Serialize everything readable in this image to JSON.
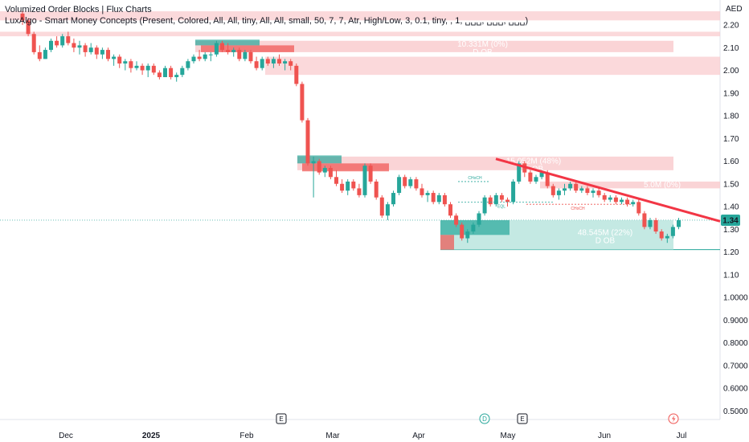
{
  "indicators": {
    "line1": "Volumized Order Blocks | Flux Charts",
    "line2": "LuxAlgo - Smart Money Concepts (Present, Colored, All, All, tiny, All, All, small, 50, 7, 7, Atr, High/Low, 3, 0.1, tiny, , 1, ␣␣␣, ␣␣␣, ␣␣␣)"
  },
  "colors": {
    "up": "#26a69a",
    "down": "#ef5350",
    "bear_zone": "#f9c9cc",
    "bull_zone": "#b5e3dc",
    "trendline": "#f23645",
    "price_label_bg": "#26a69a"
  },
  "chart_data": {
    "type": "candlestick",
    "currency": "AED",
    "y_ticks": [
      "2.20",
      "2.10",
      "2.00",
      "1.90",
      "1.80",
      "1.70",
      "1.60",
      "1.50",
      "1.40",
      "1.30",
      "1.20",
      "1.10",
      "1.0000",
      "0.9000",
      "0.8000",
      "0.7000",
      "0.6000",
      "0.5000"
    ],
    "x_ticks": [
      "Dec",
      "2025",
      "Feb",
      "Mar",
      "Apr",
      "May",
      "Jun",
      "Jul"
    ],
    "last_price": "1.34",
    "candles": [
      [
        2.25,
        2.26,
        2.2,
        2.22
      ],
      [
        2.22,
        2.23,
        2.15,
        2.16
      ],
      [
        2.16,
        2.17,
        2.07,
        2.08
      ],
      [
        2.08,
        2.11,
        2.04,
        2.05
      ],
      [
        2.05,
        2.1,
        2.05,
        2.09
      ],
      [
        2.09,
        2.14,
        2.08,
        2.13
      ],
      [
        2.13,
        2.15,
        2.1,
        2.11
      ],
      [
        2.11,
        2.16,
        2.1,
        2.15
      ],
      [
        2.15,
        2.17,
        2.11,
        2.12
      ],
      [
        2.12,
        2.14,
        2.08,
        2.1
      ],
      [
        2.1,
        2.13,
        2.07,
        2.11
      ],
      [
        2.11,
        2.12,
        2.06,
        2.08
      ],
      [
        2.08,
        2.12,
        2.07,
        2.1
      ],
      [
        2.1,
        2.11,
        2.05,
        2.07
      ],
      [
        2.07,
        2.1,
        2.05,
        2.09
      ],
      [
        2.09,
        2.1,
        2.04,
        2.05
      ],
      [
        2.05,
        2.07,
        2.02,
        2.06
      ],
      [
        2.06,
        2.07,
        2.01,
        2.03
      ],
      [
        2.03,
        2.05,
        2.0,
        2.04
      ],
      [
        2.04,
        2.05,
        1.99,
        2.01
      ],
      [
        2.01,
        2.04,
        2.0,
        2.02
      ],
      [
        2.02,
        2.03,
        1.98,
        2.0
      ],
      [
        2.0,
        2.03,
        1.97,
        2.02
      ],
      [
        2.02,
        2.03,
        1.98,
        1.99
      ],
      [
        1.99,
        2.0,
        1.96,
        1.97
      ],
      [
        1.97,
        2.02,
        1.97,
        2.01
      ],
      [
        2.01,
        2.02,
        1.96,
        1.97
      ],
      [
        1.97,
        1.99,
        1.95,
        1.98
      ],
      [
        1.98,
        2.02,
        1.97,
        2.01
      ],
      [
        2.01,
        2.05,
        2.0,
        2.04
      ],
      [
        2.04,
        2.07,
        2.03,
        2.06
      ],
      [
        2.06,
        2.09,
        2.04,
        2.05
      ],
      [
        2.05,
        2.08,
        2.04,
        2.07
      ],
      [
        2.07,
        2.08,
        2.04,
        2.07
      ],
      [
        2.07,
        2.13,
        2.06,
        2.12
      ],
      [
        2.12,
        2.13,
        2.08,
        2.09
      ],
      [
        2.09,
        2.12,
        2.07,
        2.08
      ],
      [
        2.08,
        2.1,
        2.06,
        2.09
      ],
      [
        2.09,
        2.1,
        2.04,
        2.05
      ],
      [
        2.05,
        2.09,
        2.04,
        2.08
      ],
      [
        2.08,
        2.09,
        2.03,
        2.04
      ],
      [
        2.04,
        2.06,
        2.0,
        2.01
      ],
      [
        2.01,
        2.06,
        2.0,
        2.05
      ],
      [
        2.05,
        2.06,
        2.02,
        2.03
      ],
      [
        2.03,
        2.06,
        2.01,
        2.05
      ],
      [
        2.05,
        2.07,
        2.02,
        2.03
      ],
      [
        2.03,
        2.05,
        2.0,
        2.04
      ],
      [
        2.04,
        2.05,
        2.0,
        2.02
      ],
      [
        2.02,
        2.03,
        1.93,
        1.94
      ],
      [
        1.94,
        1.95,
        1.77,
        1.78
      ],
      [
        1.78,
        1.79,
        1.58,
        1.59
      ],
      [
        1.59,
        1.62,
        1.44,
        1.6
      ],
      [
        1.6,
        1.61,
        1.54,
        1.55
      ],
      [
        1.55,
        1.58,
        1.53,
        1.57
      ],
      [
        1.57,
        1.58,
        1.52,
        1.53
      ],
      [
        1.53,
        1.56,
        1.49,
        1.5
      ],
      [
        1.5,
        1.52,
        1.46,
        1.47
      ],
      [
        1.47,
        1.52,
        1.45,
        1.51
      ],
      [
        1.51,
        1.52,
        1.47,
        1.48
      ],
      [
        1.48,
        1.5,
        1.44,
        1.45
      ],
      [
        1.45,
        1.59,
        1.44,
        1.58
      ],
      [
        1.58,
        1.59,
        1.5,
        1.51
      ],
      [
        1.51,
        1.52,
        1.43,
        1.44
      ],
      [
        1.44,
        1.45,
        1.35,
        1.36
      ],
      [
        1.36,
        1.42,
        1.34,
        1.41
      ],
      [
        1.41,
        1.47,
        1.4,
        1.46
      ],
      [
        1.46,
        1.54,
        1.45,
        1.53
      ],
      [
        1.53,
        1.54,
        1.48,
        1.49
      ],
      [
        1.49,
        1.53,
        1.48,
        1.52
      ],
      [
        1.52,
        1.53,
        1.47,
        1.48
      ],
      [
        1.48,
        1.5,
        1.44,
        1.45
      ],
      [
        1.45,
        1.47,
        1.42,
        1.46
      ],
      [
        1.46,
        1.47,
        1.41,
        1.42
      ],
      [
        1.42,
        1.46,
        1.41,
        1.45
      ],
      [
        1.45,
        1.46,
        1.4,
        1.41
      ],
      [
        1.41,
        1.42,
        1.35,
        1.36
      ],
      [
        1.36,
        1.37,
        1.31,
        1.32
      ],
      [
        1.32,
        1.33,
        1.25,
        1.26
      ],
      [
        1.26,
        1.3,
        1.24,
        1.29
      ],
      [
        1.29,
        1.33,
        1.28,
        1.32
      ],
      [
        1.32,
        1.38,
        1.31,
        1.37
      ],
      [
        1.37,
        1.45,
        1.36,
        1.44
      ],
      [
        1.44,
        1.45,
        1.4,
        1.41
      ],
      [
        1.41,
        1.46,
        1.4,
        1.45
      ],
      [
        1.45,
        1.46,
        1.42,
        1.43
      ],
      [
        1.43,
        1.44,
        1.4,
        1.42
      ],
      [
        1.42,
        1.52,
        1.41,
        1.51
      ],
      [
        1.51,
        1.6,
        1.5,
        1.59
      ],
      [
        1.59,
        1.6,
        1.53,
        1.55
      ],
      [
        1.55,
        1.56,
        1.5,
        1.51
      ],
      [
        1.51,
        1.54,
        1.5,
        1.53
      ],
      [
        1.53,
        1.56,
        1.52,
        1.55
      ],
      [
        1.55,
        1.56,
        1.48,
        1.49
      ],
      [
        1.49,
        1.5,
        1.44,
        1.45
      ],
      [
        1.45,
        1.48,
        1.43,
        1.47
      ],
      [
        1.47,
        1.5,
        1.45,
        1.48
      ],
      [
        1.48,
        1.51,
        1.47,
        1.5
      ],
      [
        1.5,
        1.51,
        1.46,
        1.47
      ],
      [
        1.47,
        1.49,
        1.46,
        1.48
      ],
      [
        1.48,
        1.49,
        1.45,
        1.46
      ],
      [
        1.46,
        1.48,
        1.44,
        1.47
      ],
      [
        1.47,
        1.48,
        1.44,
        1.45
      ],
      [
        1.45,
        1.46,
        1.42,
        1.43
      ],
      [
        1.43,
        1.45,
        1.42,
        1.44
      ],
      [
        1.44,
        1.45,
        1.41,
        1.42
      ],
      [
        1.42,
        1.44,
        1.41,
        1.43
      ],
      [
        1.43,
        1.44,
        1.4,
        1.41
      ],
      [
        1.41,
        1.43,
        1.4,
        1.42
      ],
      [
        1.42,
        1.43,
        1.36,
        1.37
      ],
      [
        1.37,
        1.38,
        1.3,
        1.31
      ],
      [
        1.31,
        1.35,
        1.3,
        1.34
      ],
      [
        1.34,
        1.35,
        1.28,
        1.29
      ],
      [
        1.29,
        1.3,
        1.25,
        1.26
      ],
      [
        1.26,
        1.28,
        1.24,
        1.27
      ],
      [
        1.27,
        1.32,
        1.26,
        1.31
      ],
      [
        1.31,
        1.35,
        1.3,
        1.34
      ]
    ],
    "order_blocks": [
      {
        "label": "10.331M (0%)",
        "sub": "D OB",
        "kind": "bear",
        "top": 2.13,
        "bottom": 2.08
      },
      {
        "label": "15.052M (48%)",
        "sub": "D OB",
        "kind": "bear",
        "top": 1.62,
        "bottom": 1.56
      },
      {
        "label": "48.545M (22%)",
        "sub": "D OB",
        "kind": "bull",
        "top": 1.34,
        "bottom": 1.21
      },
      {
        "label": "5.0M (0%)",
        "sub": "",
        "kind": "bear",
        "top": 1.51,
        "bottom": 1.48
      }
    ],
    "zones": [
      {
        "kind": "bear",
        "top": 2.26,
        "bottom": 2.22
      },
      {
        "kind": "bear",
        "top": 2.17,
        "bottom": 2.15
      },
      {
        "kind": "bear",
        "top": 2.06,
        "bottom": 1.98
      }
    ],
    "smc_labels": [
      {
        "text": "CHoCH",
        "color": "#26a69a"
      },
      {
        "text": "EQL",
        "color": "#26a69a"
      },
      {
        "text": "CHoCH",
        "color": "#ef5350"
      }
    ],
    "badges": [
      "E",
      "D",
      "E"
    ]
  }
}
